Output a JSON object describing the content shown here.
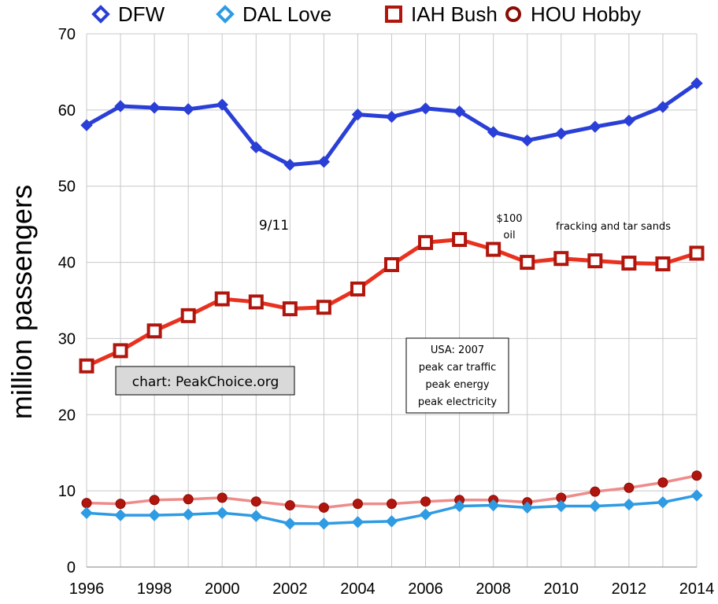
{
  "chart_data": {
    "type": "line",
    "ylabel": "million passengers",
    "ylim": [
      0,
      70
    ],
    "yticks": [
      "0",
      "10",
      "20",
      "30",
      "40",
      "50",
      "60",
      "70"
    ],
    "x": [
      1996,
      1997,
      1998,
      1999,
      2000,
      2001,
      2002,
      2003,
      2004,
      2005,
      2006,
      2007,
      2008,
      2009,
      2010,
      2011,
      2012,
      2013,
      2014
    ],
    "xticks": [
      "1996",
      "1998",
      "2000",
      "2002",
      "2004",
      "2006",
      "2008",
      "2010",
      "2012",
      "2014"
    ],
    "legend_position": "top",
    "series": [
      {
        "name": "DFW",
        "color": "#2a3fd6",
        "marker": "diamond",
        "values": [
          58.0,
          60.5,
          60.3,
          60.1,
          60.7,
          55.1,
          52.8,
          53.2,
          59.4,
          59.1,
          60.2,
          59.8,
          57.1,
          56.0,
          56.9,
          57.8,
          58.6,
          60.4,
          63.5
        ]
      },
      {
        "name": "DAL Love",
        "color": "#2e9be3",
        "marker": "diamond",
        "values": [
          7.1,
          6.8,
          6.8,
          6.9,
          7.1,
          6.7,
          5.7,
          5.7,
          5.9,
          6.0,
          6.9,
          8.0,
          8.1,
          7.8,
          8.0,
          8.0,
          8.2,
          8.5,
          9.4
        ]
      },
      {
        "name": "IAH Bush",
        "color": "#e8321f",
        "marker": "square",
        "values": [
          26.4,
          28.4,
          31.0,
          33.0,
          35.2,
          34.8,
          33.9,
          34.1,
          36.5,
          39.7,
          42.6,
          43.0,
          41.7,
          40.0,
          40.5,
          40.2,
          39.9,
          39.8,
          41.2
        ]
      },
      {
        "name": "HOU Hobby",
        "color": "#ee8c8a",
        "marker": "circle",
        "values": [
          8.4,
          8.3,
          8.8,
          8.9,
          9.1,
          8.6,
          8.1,
          7.8,
          8.3,
          8.3,
          8.6,
          8.8,
          8.8,
          8.5,
          9.1,
          9.9,
          10.4,
          11.1,
          12.0
        ]
      }
    ],
    "annotations": {
      "nine_eleven": "9/11",
      "oil_line1": "$100",
      "oil_line2": "oil",
      "fracking": "fracking and tar sands",
      "usa_lines": [
        "USA: 2007",
        "peak car traffic",
        "peak energy",
        "peak electricity"
      ],
      "credit": "chart: PeakChoice.org"
    }
  }
}
